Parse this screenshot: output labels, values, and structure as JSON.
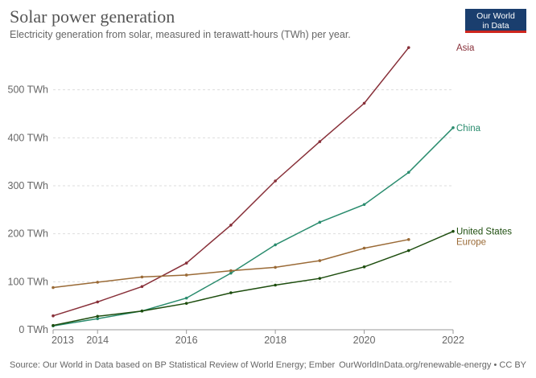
{
  "header": {
    "title": "Solar power generation",
    "subtitle": "Electricity generation from solar, measured in terawatt-hours (TWh) per year."
  },
  "logo": {
    "line1": "Our World",
    "line2": "in Data",
    "bg": "#1a3e6e",
    "accent": "#ce261e"
  },
  "footer": {
    "source": "Source: Our World in Data based on BP Statistical Review of World Energy; Ember",
    "link": "OurWorldInData.org/renewable-energy • CC BY"
  },
  "chart_data": {
    "type": "line",
    "title": "Solar power generation",
    "xlabel": "",
    "ylabel": "",
    "xlim": [
      2013,
      2022
    ],
    "ylim": [
      0,
      600
    ],
    "x_ticks": [
      {
        "value": 2013,
        "label": "2013"
      },
      {
        "value": 2014,
        "label": "2014"
      },
      {
        "value": 2016,
        "label": "2016"
      },
      {
        "value": 2018,
        "label": "2018"
      },
      {
        "value": 2020,
        "label": "2020"
      },
      {
        "value": 2022,
        "label": "2022"
      }
    ],
    "y_ticks": [
      {
        "value": 0,
        "label": "0 TWh"
      },
      {
        "value": 100,
        "label": "100 TWh"
      },
      {
        "value": 200,
        "label": "200 TWh"
      },
      {
        "value": 300,
        "label": "300 TWh"
      },
      {
        "value": 400,
        "label": "400 TWh"
      },
      {
        "value": 500,
        "label": "500 TWh"
      }
    ],
    "grid": true,
    "series": [
      {
        "name": "Asia",
        "color": "#883039",
        "points": [
          [
            2013,
            29
          ],
          [
            2014,
            58
          ],
          [
            2015,
            90
          ],
          [
            2016,
            139
          ],
          [
            2017,
            218
          ],
          [
            2018,
            310
          ],
          [
            2019,
            392
          ],
          [
            2020,
            472
          ],
          [
            2021,
            588
          ]
        ]
      },
      {
        "name": "China",
        "color": "#2a8c6e",
        "points": [
          [
            2013,
            8
          ],
          [
            2014,
            23
          ],
          [
            2015,
            39
          ],
          [
            2016,
            66
          ],
          [
            2017,
            118
          ],
          [
            2018,
            177
          ],
          [
            2019,
            224
          ],
          [
            2020,
            261
          ],
          [
            2021,
            328
          ],
          [
            2022,
            421
          ]
        ]
      },
      {
        "name": "United States",
        "color": "#1d4d0e",
        "points": [
          [
            2013,
            9
          ],
          [
            2014,
            28
          ],
          [
            2015,
            39
          ],
          [
            2016,
            55
          ],
          [
            2017,
            77
          ],
          [
            2018,
            93
          ],
          [
            2019,
            107
          ],
          [
            2020,
            131
          ],
          [
            2021,
            165
          ],
          [
            2022,
            205
          ]
        ]
      },
      {
        "name": "Europe",
        "color": "#9a6a36",
        "points": [
          [
            2013,
            88
          ],
          [
            2014,
            99
          ],
          [
            2015,
            110
          ],
          [
            2016,
            114
          ],
          [
            2017,
            123
          ],
          [
            2018,
            130
          ],
          [
            2019,
            144
          ],
          [
            2020,
            170
          ],
          [
            2021,
            188
          ]
        ]
      }
    ]
  }
}
